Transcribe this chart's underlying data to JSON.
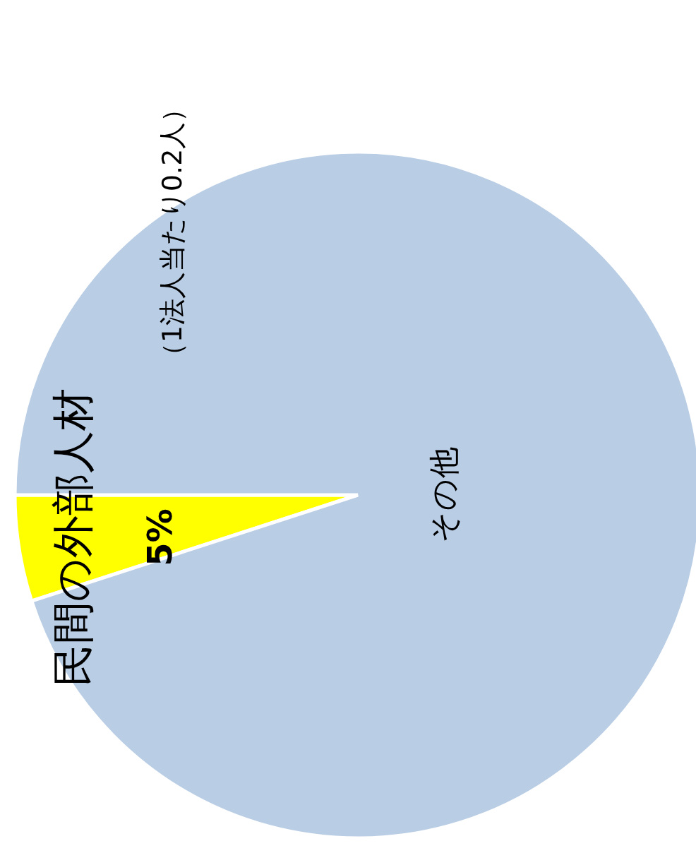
{
  "chart_data": {
    "type": "pie",
    "categories": [
      "民間の外部人材",
      "その他"
    ],
    "values": [
      5,
      95
    ],
    "colors": [
      "#ffff00",
      "#b9cde5"
    ],
    "value_labels": [
      "5%",
      null
    ],
    "annotations": [
      "（1法人当たり0.2人）"
    ]
  }
}
